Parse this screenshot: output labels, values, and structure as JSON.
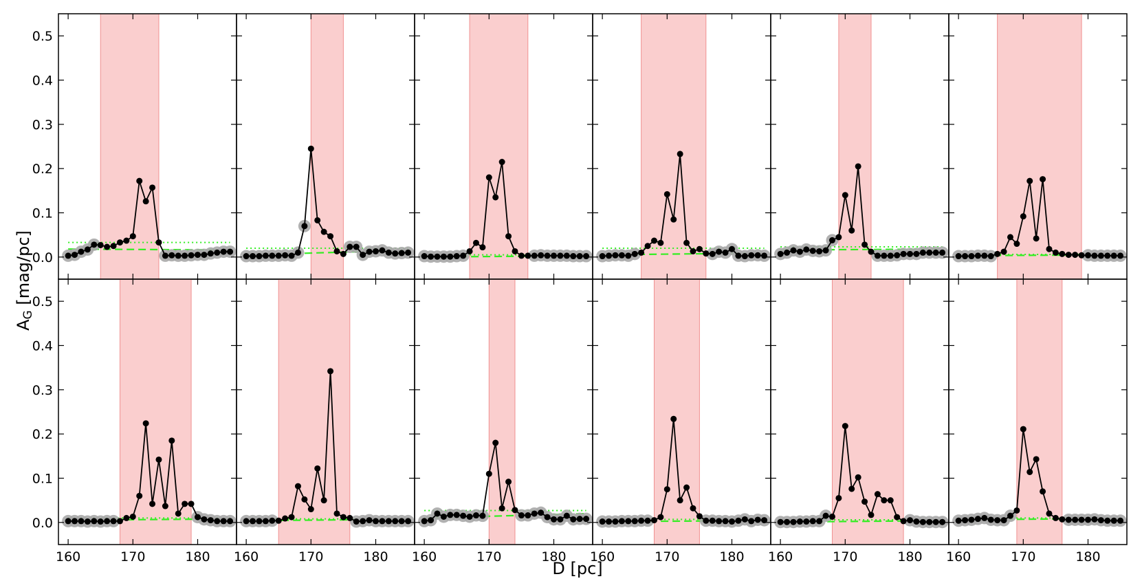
{
  "colors": {
    "shade": "#f8b3b3",
    "line": "#000000",
    "marker": "#000000",
    "halo": "#a9a9a9",
    "fit": "#33ee22"
  },
  "figure": {
    "xlabel": "D [pc]",
    "ylabel_main": "A",
    "ylabel_sub": "G",
    "ylabel_rest": " [mag/pc]"
  },
  "chart_data": {
    "type": "line",
    "layout": "2 rows x 6 columns, shared axes",
    "xlim": [
      158.5,
      186
    ],
    "ylim": [
      -0.05,
      0.55
    ],
    "xticks": [
      160,
      170,
      180
    ],
    "yticks": [
      0.0,
      0.1,
      0.2,
      0.3,
      0.4,
      0.5
    ],
    "ytick_labels": [
      "0.0",
      "0.1",
      "0.2",
      "0.3",
      "0.4",
      "0.5"
    ],
    "x": [
      160,
      161,
      162,
      163,
      164,
      165,
      166,
      167,
      168,
      169,
      170,
      171,
      172,
      173,
      174,
      175,
      176,
      177,
      178,
      179,
      180,
      181,
      182,
      183,
      184,
      185
    ],
    "panels": [
      {
        "shade": [
          165,
          174
        ],
        "fit_dashed": [
          0.018,
          0.016
        ],
        "fit_dotted": 0.033,
        "values": [
          0.003,
          0.005,
          0.012,
          0.017,
          0.028,
          0.027,
          0.023,
          0.025,
          0.033,
          0.037,
          0.047,
          0.172,
          0.126,
          0.157,
          0.033,
          0.003,
          0.004,
          0.003,
          0.003,
          0.004,
          0.005,
          0.005,
          0.008,
          0.01,
          0.012,
          0.012
        ]
      },
      {
        "shade": [
          170,
          175
        ],
        "fit_dashed": [
          0.005,
          0.015
        ],
        "fit_dotted": 0.02,
        "values": [
          0.002,
          0.002,
          0.002,
          0.003,
          0.003,
          0.003,
          0.004,
          0.003,
          0.01,
          0.07,
          0.245,
          0.083,
          0.057,
          0.047,
          0.013,
          0.007,
          0.023,
          0.023,
          0.005,
          0.012,
          0.013,
          0.015,
          0.01,
          0.008,
          0.009,
          0.01
        ]
      },
      {
        "shade": [
          167,
          176
        ],
        "fit_dashed": [
          0.0,
          0.003
        ],
        "fit_dotted": 0.005,
        "values": [
          0.002,
          0.001,
          0.001,
          0.001,
          0.001,
          0.002,
          0.003,
          0.013,
          0.032,
          0.022,
          0.18,
          0.135,
          0.215,
          0.047,
          0.013,
          0.003,
          0.003,
          0.003,
          0.004,
          0.003,
          0.003,
          0.003,
          0.003,
          0.002,
          0.002,
          0.002
        ]
      },
      {
        "shade": [
          166,
          176
        ],
        "fit_dashed": [
          0.005,
          0.009
        ],
        "fit_dotted": 0.02,
        "values": [
          0.002,
          0.003,
          0.004,
          0.004,
          0.003,
          0.007,
          0.01,
          0.025,
          0.037,
          0.032,
          0.142,
          0.085,
          0.233,
          0.032,
          0.013,
          0.018,
          0.008,
          0.007,
          0.012,
          0.01,
          0.018,
          0.003,
          0.002,
          0.004,
          0.004,
          0.003
        ]
      },
      {
        "shade": [
          169,
          174
        ],
        "fit_dashed": [
          0.016,
          0.018
        ],
        "fit_dotted": 0.023,
        "values": [
          0.007,
          0.01,
          0.015,
          0.012,
          0.017,
          0.014,
          0.013,
          0.015,
          0.038,
          0.045,
          0.14,
          0.06,
          0.205,
          0.028,
          0.012,
          0.003,
          0.003,
          0.003,
          0.004,
          0.007,
          0.007,
          0.007,
          0.01,
          0.01,
          0.01,
          0.01
        ]
      },
      {
        "shade": [
          166,
          179
        ],
        "fit_dashed": [
          0.003,
          0.005
        ],
        "fit_dotted": 0.006,
        "values": [
          0.002,
          0.002,
          0.002,
          0.003,
          0.003,
          0.002,
          0.007,
          0.012,
          0.045,
          0.03,
          0.092,
          0.172,
          0.042,
          0.176,
          0.018,
          0.01,
          0.007,
          0.005,
          0.005,
          0.004,
          0.004,
          0.003,
          0.003,
          0.003,
          0.003,
          0.003
        ]
      },
      {
        "shade": [
          168,
          179
        ],
        "fit_dashed": [
          0.005,
          0.008
        ],
        "fit_dotted": 0.01,
        "values": [
          0.003,
          0.003,
          0.003,
          0.002,
          0.003,
          0.002,
          0.003,
          0.003,
          0.003,
          0.01,
          0.013,
          0.06,
          0.224,
          0.042,
          0.142,
          0.037,
          0.185,
          0.02,
          0.042,
          0.042,
          0.012,
          0.007,
          0.005,
          0.003,
          0.003,
          0.003
        ]
      },
      {
        "shade": [
          165,
          176
        ],
        "fit_dashed": [
          0.004,
          0.007
        ],
        "fit_dotted": 0.008,
        "values": [
          0.003,
          0.003,
          0.003,
          0.003,
          0.004,
          0.004,
          0.009,
          0.012,
          0.082,
          0.052,
          0.03,
          0.122,
          0.05,
          0.342,
          0.02,
          0.012,
          0.01,
          0.002,
          0.003,
          0.005,
          0.003,
          0.003,
          0.003,
          0.003,
          0.003,
          0.003
        ]
      },
      {
        "shade": [
          170,
          174
        ],
        "fit_dashed": [
          0.01,
          0.02
        ],
        "fit_dotted": 0.027,
        "values": [
          0.003,
          0.005,
          0.02,
          0.013,
          0.017,
          0.017,
          0.015,
          0.013,
          0.016,
          0.015,
          0.11,
          0.18,
          0.032,
          0.092,
          0.028,
          0.016,
          0.016,
          0.02,
          0.022,
          0.012,
          0.007,
          0.007,
          0.015,
          0.007,
          0.008,
          0.008
        ]
      },
      {
        "shade": [
          168,
          175
        ],
        "fit_dashed": [
          0.002,
          0.004
        ],
        "fit_dotted": 0.007,
        "values": [
          0.002,
          0.002,
          0.002,
          0.003,
          0.003,
          0.003,
          0.004,
          0.004,
          0.005,
          0.012,
          0.075,
          0.234,
          0.05,
          0.079,
          0.032,
          0.014,
          0.004,
          0.004,
          0.003,
          0.003,
          0.002,
          0.004,
          0.007,
          0.003,
          0.006,
          0.005
        ]
      },
      {
        "shade": [
          168,
          179
        ],
        "fit_dashed": [
          0.001,
          0.004
        ],
        "fit_dotted": 0.006,
        "values": [
          0.001,
          0.001,
          0.001,
          0.002,
          0.002,
          0.003,
          0.003,
          0.015,
          0.013,
          0.055,
          0.218,
          0.076,
          0.102,
          0.047,
          0.017,
          0.064,
          0.05,
          0.05,
          0.012,
          0.003,
          0.005,
          0.002,
          0.001,
          0.001,
          0.001,
          0.001
        ]
      },
      {
        "shade": [
          169,
          176
        ],
        "fit_dashed": [
          0.006,
          0.009
        ],
        "fit_dotted": 0.01,
        "values": [
          0.004,
          0.005,
          0.006,
          0.008,
          0.01,
          0.006,
          0.005,
          0.005,
          0.015,
          0.027,
          0.211,
          0.114,
          0.143,
          0.07,
          0.02,
          0.01,
          0.007,
          0.006,
          0.006,
          0.006,
          0.006,
          0.007,
          0.005,
          0.004,
          0.004,
          0.004
        ]
      }
    ]
  }
}
